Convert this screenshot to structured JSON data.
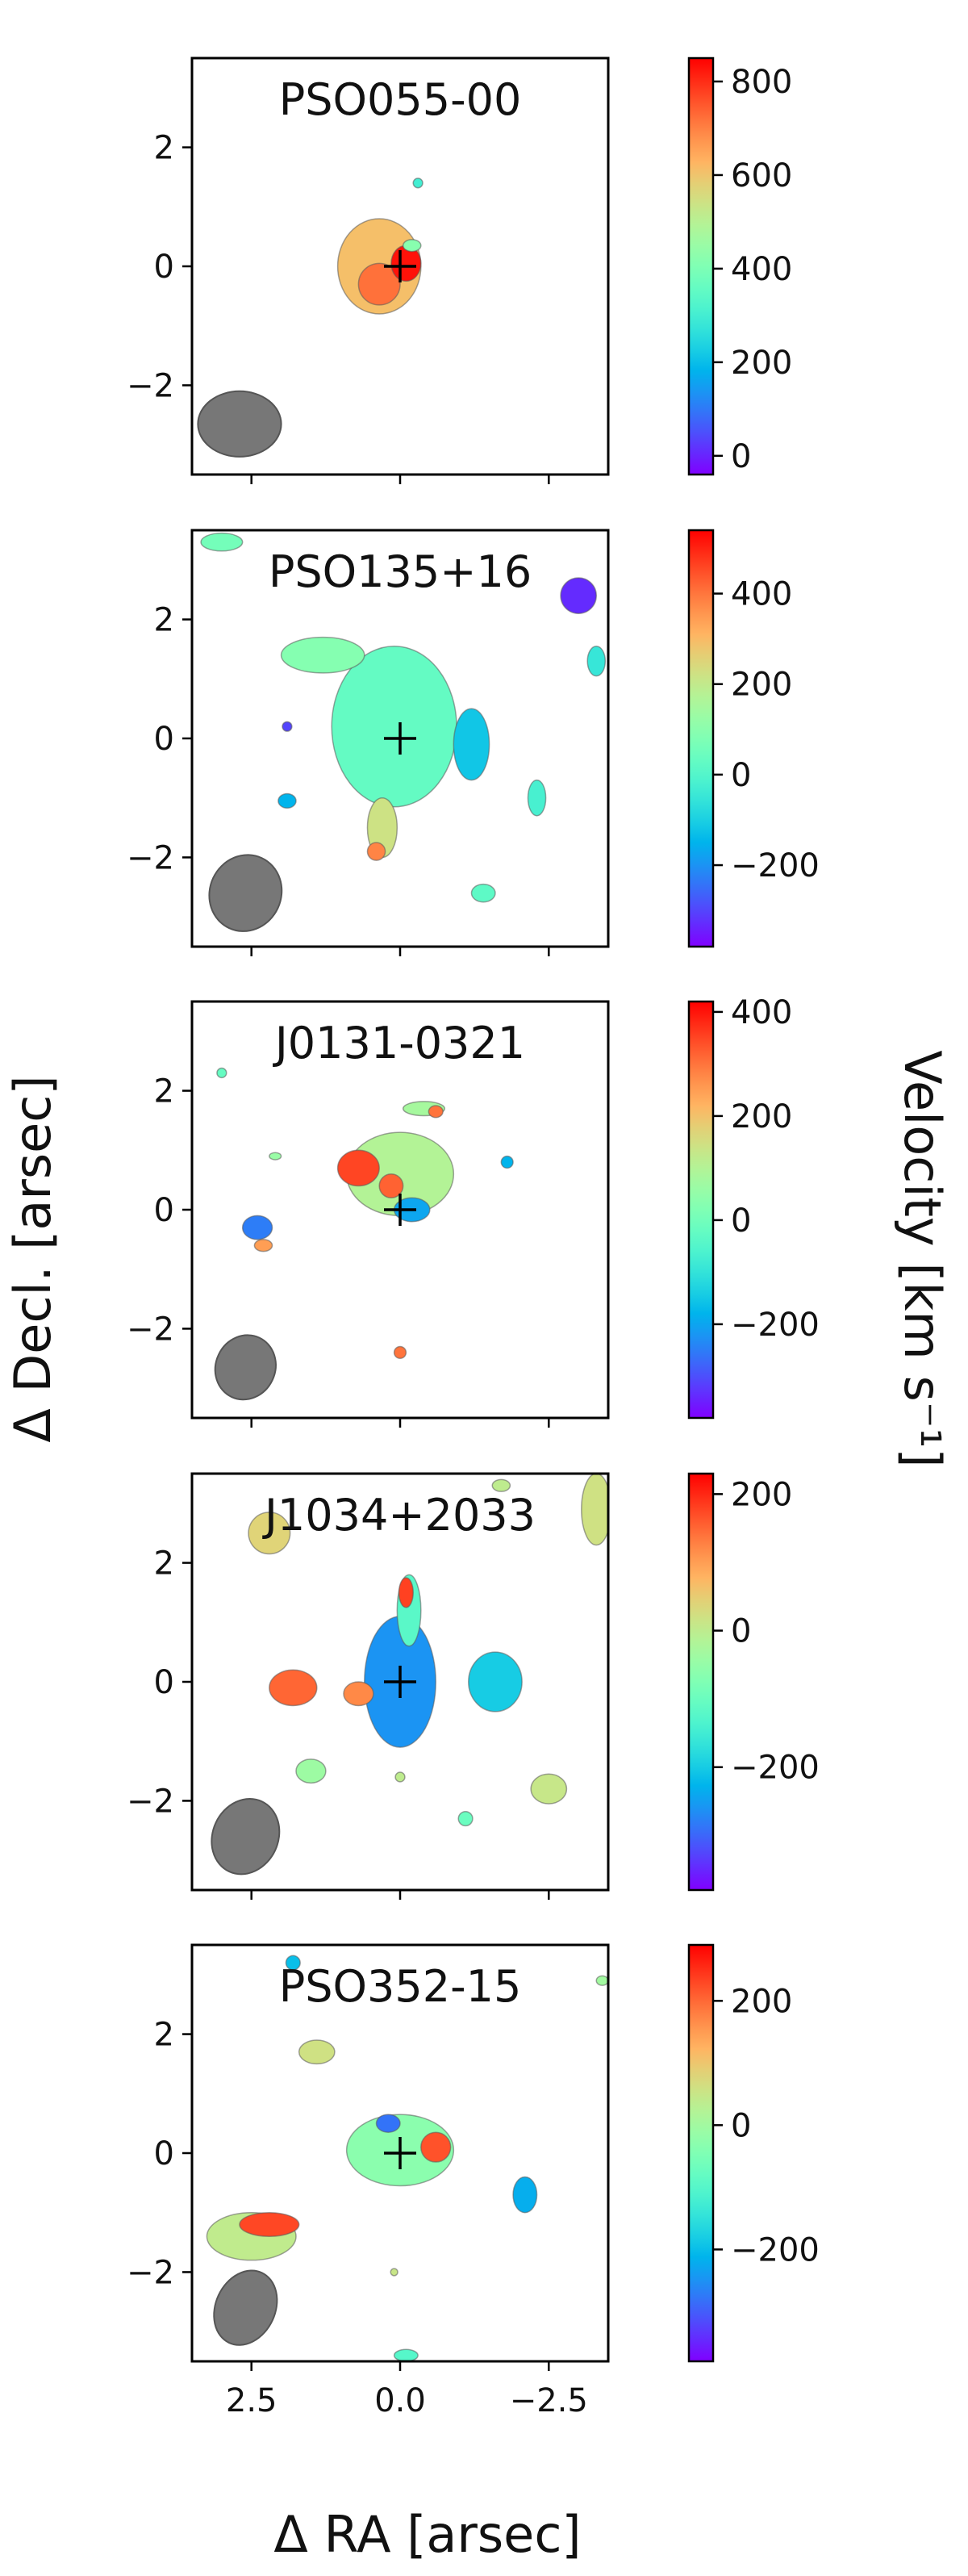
{
  "figure": {
    "xlabel": "Δ RA [arsec]",
    "ylabel": "Δ Decl. [arsec]",
    "colorbar_label": "Velocity [km s⁻¹]"
  },
  "chart_data": [
    {
      "type": "heatmap",
      "title": "PSO055-00",
      "xlim": [
        3.5,
        -3.5
      ],
      "ylim": [
        -3.5,
        3.5
      ],
      "yticks": [
        2,
        0,
        -2
      ],
      "ytick_labels": [
        "2",
        "0",
        "−2"
      ],
      "xticks": [
        2.5,
        0.0,
        -2.5
      ],
      "colorbar": {
        "min": -40,
        "max": 850,
        "ticks": [
          800,
          600,
          400,
          200,
          0
        ],
        "tick_labels": [
          "800",
          "600",
          "400",
          "200",
          "0"
        ],
        "colormap": "rainbow"
      },
      "marker": {
        "x": 0,
        "y": 0,
        "symbol": "+"
      },
      "beam": {
        "x": 2.7,
        "y": -2.65,
        "major_arcsec": 1.4,
        "minor_arcsec": 1.1
      },
      "blobs": [
        {
          "x": 0.35,
          "y": 0.0,
          "rx": 0.7,
          "ry": 0.8,
          "v": 610
        },
        {
          "x": 0.35,
          "y": -0.3,
          "rx": 0.35,
          "ry": 0.35,
          "v": 720
        },
        {
          "x": -0.1,
          "y": 0.05,
          "rx": 0.25,
          "ry": 0.3,
          "v": 830
        },
        {
          "x": -0.2,
          "y": 0.35,
          "rx": 0.15,
          "ry": 0.1,
          "v": 420
        },
        {
          "x": -0.3,
          "y": 1.4,
          "rx": 0.08,
          "ry": 0.08,
          "v": 300
        }
      ]
    },
    {
      "type": "heatmap",
      "title": "PSO135+16",
      "xlim": [
        3.5,
        -3.5
      ],
      "ylim": [
        -3.5,
        3.5
      ],
      "yticks": [
        2,
        0,
        -2
      ],
      "ytick_labels": [
        "2",
        "0",
        "−2"
      ],
      "xticks": [
        2.5,
        0.0,
        -2.5
      ],
      "colorbar": {
        "min": -380,
        "max": 540,
        "ticks": [
          400,
          200,
          0,
          -200
        ],
        "tick_labels": [
          "400",
          "200",
          "0",
          "−200"
        ],
        "colormap": "rainbow"
      },
      "marker": {
        "x": 0,
        "y": 0,
        "symbol": "+"
      },
      "beam": {
        "x": 2.6,
        "y": -2.6,
        "major_arcsec": 1.3,
        "minor_arcsec": 1.2
      },
      "blobs": [
        {
          "x": 0.1,
          "y": 0.2,
          "rx": 1.05,
          "ry": 1.35,
          "v": 30
        },
        {
          "x": 1.3,
          "y": 1.4,
          "rx": 0.7,
          "ry": 0.3,
          "v": 90
        },
        {
          "x": 0.3,
          "y": -1.5,
          "rx": 0.25,
          "ry": 0.5,
          "v": 220
        },
        {
          "x": 0.4,
          "y": -1.9,
          "rx": 0.15,
          "ry": 0.15,
          "v": 380
        },
        {
          "x": -1.2,
          "y": -0.1,
          "rx": 0.3,
          "ry": 0.6,
          "v": -120
        },
        {
          "x": 3.0,
          "y": 3.3,
          "rx": 0.35,
          "ry": 0.15,
          "v": 60
        },
        {
          "x": -3.0,
          "y": 2.4,
          "rx": 0.3,
          "ry": 0.3,
          "v": -330
        },
        {
          "x": -3.3,
          "y": 1.3,
          "rx": 0.15,
          "ry": 0.25,
          "v": -50
        },
        {
          "x": 1.9,
          "y": 0.2,
          "rx": 0.08,
          "ry": 0.08,
          "v": -300
        },
        {
          "x": 1.9,
          "y": -1.05,
          "rx": 0.15,
          "ry": 0.12,
          "v": -150
        },
        {
          "x": -2.3,
          "y": -1.0,
          "rx": 0.15,
          "ry": 0.3,
          "v": -20
        },
        {
          "x": -1.4,
          "y": -2.6,
          "rx": 0.2,
          "ry": 0.15,
          "v": 20
        }
      ]
    },
    {
      "type": "heatmap",
      "title": "J0131-0321",
      "xlim": [
        3.5,
        -3.5
      ],
      "ylim": [
        -3.5,
        3.5
      ],
      "yticks": [
        2,
        0,
        -2
      ],
      "ytick_labels": [
        "2",
        "0",
        "−2"
      ],
      "xticks": [
        2.5,
        0.0,
        -2.5
      ],
      "colorbar": {
        "min": -380,
        "max": 420,
        "ticks": [
          400,
          200,
          0,
          -200
        ],
        "tick_labels": [
          "400",
          "200",
          "0",
          "−200"
        ],
        "colormap": "rainbow"
      },
      "marker": {
        "x": 0,
        "y": 0,
        "symbol": "+"
      },
      "beam": {
        "x": 2.6,
        "y": -2.65,
        "major_arcsec": 1.1,
        "minor_arcsec": 1.0
      },
      "blobs": [
        {
          "x": 0.0,
          "y": 0.6,
          "rx": 0.9,
          "ry": 0.7,
          "v": 100
        },
        {
          "x": 0.7,
          "y": 0.7,
          "rx": 0.35,
          "ry": 0.3,
          "v": 350
        },
        {
          "x": 0.15,
          "y": 0.4,
          "rx": 0.2,
          "ry": 0.2,
          "v": 320
        },
        {
          "x": -0.2,
          "y": 0.0,
          "rx": 0.3,
          "ry": 0.2,
          "v": -200
        },
        {
          "x": -0.4,
          "y": 1.7,
          "rx": 0.35,
          "ry": 0.12,
          "v": 80
        },
        {
          "x": -0.6,
          "y": 1.65,
          "rx": 0.12,
          "ry": 0.1,
          "v": 300
        },
        {
          "x": 2.4,
          "y": -0.3,
          "rx": 0.25,
          "ry": 0.2,
          "v": -250
        },
        {
          "x": 2.3,
          "y": -0.6,
          "rx": 0.15,
          "ry": 0.1,
          "v": 250
        },
        {
          "x": 3.0,
          "y": 2.3,
          "rx": 0.08,
          "ry": 0.08,
          "v": -20
        },
        {
          "x": 2.1,
          "y": 0.9,
          "rx": 0.1,
          "ry": 0.06,
          "v": 60
        },
        {
          "x": -1.8,
          "y": 0.8,
          "rx": 0.1,
          "ry": 0.1,
          "v": -180
        },
        {
          "x": 0.0,
          "y": -2.4,
          "rx": 0.1,
          "ry": 0.1,
          "v": 300
        }
      ]
    },
    {
      "type": "heatmap",
      "title": "J1034+2033",
      "xlim": [
        3.5,
        -3.5
      ],
      "ylim": [
        -3.5,
        3.5
      ],
      "yticks": [
        2,
        0,
        -2
      ],
      "ytick_labels": [
        "2",
        "0",
        "−2"
      ],
      "xticks": [
        2.5,
        0.0,
        -2.5
      ],
      "colorbar": {
        "min": -380,
        "max": 230,
        "ticks": [
          200,
          0,
          -200
        ],
        "tick_labels": [
          "200",
          "0",
          "−200"
        ],
        "colormap": "rainbow"
      },
      "marker": {
        "x": 0,
        "y": 0,
        "symbol": "+"
      },
      "beam": {
        "x": 2.6,
        "y": -2.6,
        "major_arcsec": 1.3,
        "minor_arcsec": 1.1
      },
      "blobs": [
        {
          "x": 0.0,
          "y": 0.0,
          "rx": 0.6,
          "ry": 1.1,
          "v": -260
        },
        {
          "x": -0.15,
          "y": 1.2,
          "rx": 0.2,
          "ry": 0.6,
          "v": -120
        },
        {
          "x": -0.1,
          "y": 1.5,
          "rx": 0.12,
          "ry": 0.25,
          "v": 180
        },
        {
          "x": 1.8,
          "y": -0.1,
          "rx": 0.4,
          "ry": 0.3,
          "v": 150
        },
        {
          "x": 0.7,
          "y": -0.2,
          "rx": 0.25,
          "ry": 0.2,
          "v": 120
        },
        {
          "x": -1.6,
          "y": 0.0,
          "rx": 0.45,
          "ry": 0.5,
          "v": -200
        },
        {
          "x": 2.2,
          "y": 2.5,
          "rx": 0.35,
          "ry": 0.35,
          "v": 40
        },
        {
          "x": -3.3,
          "y": 2.9,
          "rx": 0.25,
          "ry": 0.6,
          "v": 20
        },
        {
          "x": -1.7,
          "y": 3.3,
          "rx": 0.15,
          "ry": 0.1,
          "v": 0
        },
        {
          "x": 1.5,
          "y": -1.5,
          "rx": 0.25,
          "ry": 0.2,
          "v": -40
        },
        {
          "x": -2.5,
          "y": -1.8,
          "rx": 0.3,
          "ry": 0.25,
          "v": 10
        },
        {
          "x": -1.1,
          "y": -2.3,
          "rx": 0.12,
          "ry": 0.12,
          "v": -100
        },
        {
          "x": 0.0,
          "y": -1.6,
          "rx": 0.08,
          "ry": 0.08,
          "v": 0
        }
      ]
    },
    {
      "type": "heatmap",
      "title": "PSO352-15",
      "xlim": [
        3.5,
        -3.5
      ],
      "ylim": [
        -3.5,
        3.5
      ],
      "yticks": [
        2,
        0,
        -2
      ],
      "ytick_labels": [
        "2",
        "0",
        "−2"
      ],
      "xticks": [
        2.5,
        0.0,
        -2.5
      ],
      "xtick_labels": [
        "2.5",
        "0.0",
        "−2.5"
      ],
      "colorbar": {
        "min": -380,
        "max": 290,
        "ticks": [
          200,
          0,
          -200
        ],
        "tick_labels": [
          "200",
          "0",
          "−200"
        ],
        "colormap": "rainbow"
      },
      "marker": {
        "x": 0,
        "y": 0,
        "symbol": "+"
      },
      "beam": {
        "x": 2.6,
        "y": -2.6,
        "major_arcsec": 1.3,
        "minor_arcsec": 1.0
      },
      "blobs": [
        {
          "x": 0.0,
          "y": 0.05,
          "rx": 0.9,
          "ry": 0.6,
          "v": -30
        },
        {
          "x": 0.2,
          "y": 0.5,
          "rx": 0.2,
          "ry": 0.15,
          "v": -280
        },
        {
          "x": -0.6,
          "y": 0.1,
          "rx": 0.25,
          "ry": 0.25,
          "v": 220
        },
        {
          "x": 2.5,
          "y": -1.4,
          "rx": 0.75,
          "ry": 0.4,
          "v": 40
        },
        {
          "x": 2.2,
          "y": -1.2,
          "rx": 0.5,
          "ry": 0.2,
          "v": 230
        },
        {
          "x": 1.4,
          "y": 1.7,
          "rx": 0.3,
          "ry": 0.2,
          "v": 60
        },
        {
          "x": -2.1,
          "y": -0.7,
          "rx": 0.2,
          "ry": 0.3,
          "v": -220
        },
        {
          "x": 1.8,
          "y": 3.2,
          "rx": 0.12,
          "ry": 0.12,
          "v": -200
        },
        {
          "x": -3.4,
          "y": 2.9,
          "rx": 0.1,
          "ry": 0.08,
          "v": 0
        },
        {
          "x": 0.1,
          "y": -2.0,
          "rx": 0.06,
          "ry": 0.06,
          "v": 50
        },
        {
          "x": -0.1,
          "y": -3.4,
          "rx": 0.2,
          "ry": 0.1,
          "v": -100
        }
      ]
    }
  ]
}
